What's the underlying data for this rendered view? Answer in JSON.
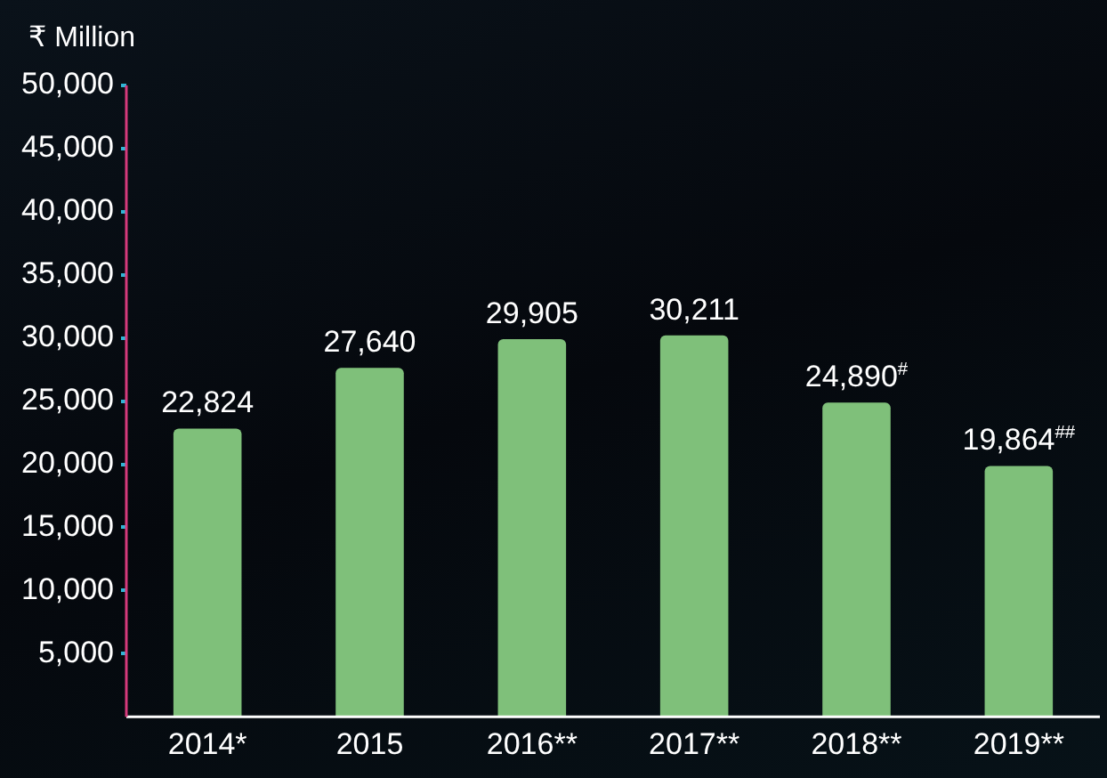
{
  "chart_data": {
    "type": "bar",
    "ylabel": "₹ Million",
    "categories": [
      "2014*",
      "2015",
      "2016**",
      "2017**",
      "2018**",
      "2019**"
    ],
    "values": [
      22824,
      27640,
      29905,
      30211,
      24890,
      19864
    ],
    "value_labels": [
      "22,824",
      "27,640",
      "29,905",
      "30,211",
      "24,890$^{#}$",
      "19,864$^{##}$"
    ],
    "color": "#7fc07a",
    "ylim": [
      0,
      50000
    ],
    "yticks": [
      {
        "value": 5000,
        "label": "5,000"
      },
      {
        "value": 10000,
        "label": "10,000"
      },
      {
        "value": 15000,
        "label": "15,000"
      },
      {
        "value": 20000,
        "label": "20,000"
      },
      {
        "value": 25000,
        "label": "25,000"
      },
      {
        "value": 30000,
        "label": "30,000"
      },
      {
        "value": 35000,
        "label": "35,000"
      },
      {
        "value": 40000,
        "label": "40,000"
      },
      {
        "value": 45000,
        "label": "45,000"
      },
      {
        "value": 50000,
        "label": "50,000"
      }
    ],
    "grid": false,
    "legend": false
  }
}
